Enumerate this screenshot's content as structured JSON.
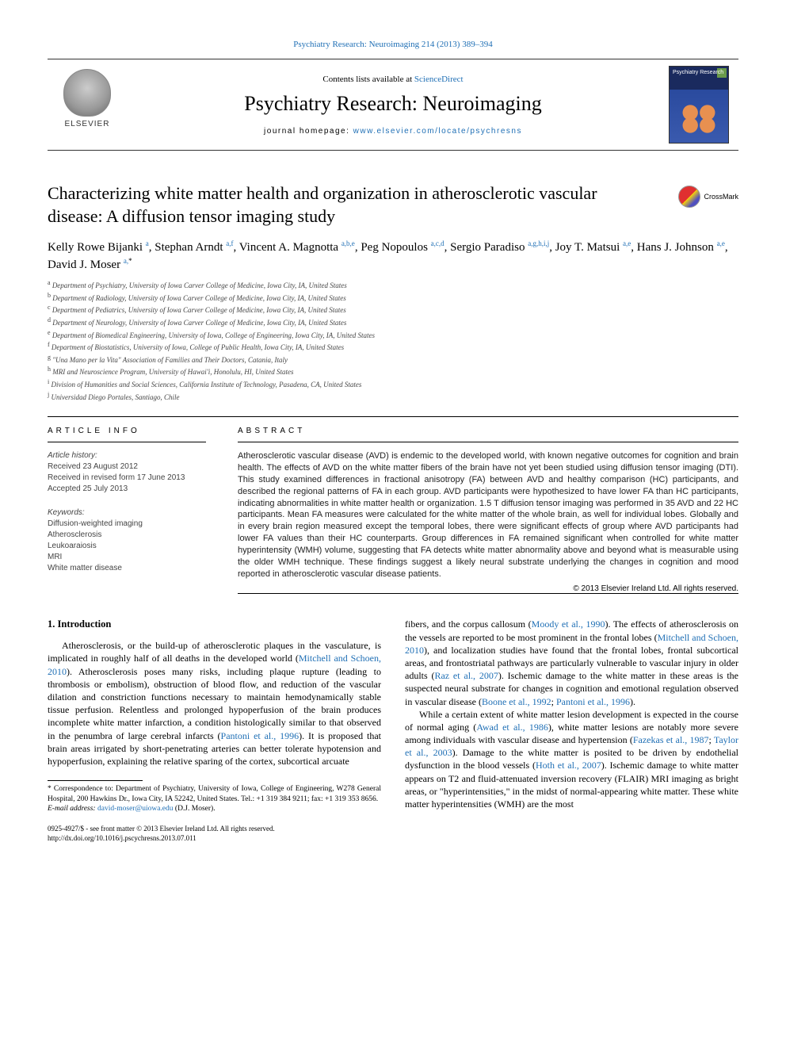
{
  "top_citation": "Psychiatry Research: Neuroimaging 214 (2013) 389–394",
  "header": {
    "contents_prefix": "Contents lists available at ",
    "contents_link": "ScienceDirect",
    "journal_name": "Psychiatry Research: Neuroimaging",
    "homepage_prefix": "journal homepage: ",
    "homepage_url": "www.elsevier.com/locate/psychresns",
    "elsevier": "ELSEVIER",
    "cover_title": "Psychiatry Research"
  },
  "crossmark": "CrossMark",
  "title": "Characterizing white matter health and organization in atherosclerotic vascular disease: A diffusion tensor imaging study",
  "authors_html": "Kelly Rowe Bijanki <sup>a</sup>, Stephan Arndt <sup>a,f</sup>, Vincent A. Magnotta <sup>a,b,e</sup>, Peg Nopoulos <sup>a,c,d</sup>, Sergio Paradiso <sup>a,g,h,i,j</sup>, Joy T. Matsui <sup>a,e</sup>, Hans J. Johnson <sup>a,e</sup>, David J. Moser <sup>a,</sup>",
  "affiliations": [
    "a Department of Psychiatry, University of Iowa Carver College of Medicine, Iowa City, IA, United States",
    "b Department of Radiology, University of Iowa Carver College of Medicine, Iowa City, IA, United States",
    "c Department of Pediatrics, University of Iowa Carver College of Medicine, Iowa City, IA, United States",
    "d Department of Neurology, University of Iowa Carver College of Medicine, Iowa City, IA, United States",
    "e Department of Biomedical Engineering, University of Iowa, College of Engineering, Iowa City, IA, United States",
    "f Department of Biostatistics, University of Iowa, College of Public Health, Iowa City, IA, United States",
    "g \"Una Mano per la Vita\" Association of Families and Their Doctors, Catania, Italy",
    "h MRI and Neuroscience Program, University of Hawai'i, Honolulu, HI, United States",
    "i Division of Humanities and Social Sciences, California Institute of Technology, Pasadena, CA, United States",
    "j Universidad Diego Portales, Santiago, Chile"
  ],
  "info": {
    "label": "article info",
    "history_label": "Article history:",
    "received": "Received 23 August 2012",
    "revised": "Received in revised form 17 June 2013",
    "accepted": "Accepted 25 July 2013",
    "keywords_label": "Keywords:",
    "keywords": [
      "Diffusion-weighted imaging",
      "Atherosclerosis",
      "Leukoaraiosis",
      "MRI",
      "White matter disease"
    ]
  },
  "abstract": {
    "label": "abstract",
    "text": "Atherosclerotic vascular disease (AVD) is endemic to the developed world, with known negative outcomes for cognition and brain health. The effects of AVD on the white matter fibers of the brain have not yet been studied using diffusion tensor imaging (DTI). This study examined differences in fractional anisotropy (FA) between AVD and healthy comparison (HC) participants, and described the regional patterns of FA in each group. AVD participants were hypothesized to have lower FA than HC participants, indicating abnormalities in white matter health or organization. 1.5 T diffusion tensor imaging was performed in 35 AVD and 22 HC participants. Mean FA measures were calculated for the white matter of the whole brain, as well for individual lobes. Globally and in every brain region measured except the temporal lobes, there were significant effects of group where AVD participants had lower FA values than their HC counterparts. Group differences in FA remained significant when controlled for white matter hyperintensity (WMH) volume, suggesting that FA detects white matter abnormality above and beyond what is measurable using the older WMH technique. These findings suggest a likely neural substrate underlying the changes in cognition and mood reported in atherosclerotic vascular disease patients.",
    "copyright": "© 2013 Elsevier Ireland Ltd. All rights reserved."
  },
  "section1": {
    "heading": "1.  Introduction",
    "p1a": "Atherosclerosis, or the build-up of atherosclerotic plaques in the vasculature, is implicated in roughly half of all deaths in the developed world (",
    "p1_ref1": "Mitchell and Schoen, 2010",
    "p1b": "). Atherosclerosis poses many risks, including plaque rupture (leading to thrombosis or embolism), obstruction of blood flow, and reduction of the vascular dilation and constriction functions necessary to maintain hemodynamically stable tissue perfusion. Relentless and prolonged hypoperfusion of the brain produces incomplete white matter infarction, a condition histologically similar to that observed in the penumbra of large cerebral infarcts (",
    "p1_ref2": "Pantoni et al., 1996",
    "p1c": "). It is proposed that brain areas irrigated by short-penetrating arteries can better tolerate hypotension and hypoperfusion, explaining the relative sparing of the cortex, subcortical arcuate",
    "p2a": "fibers, and the corpus callosum (",
    "p2_ref1": "Moody et al., 1990",
    "p2b": "). The effects of atherosclerosis on the vessels are reported to be most prominent in the frontal lobes (",
    "p2_ref2": "Mitchell and Schoen, 2010",
    "p2c": "), and localization studies have found that the frontal lobes, frontal subcortical areas, and frontostriatal pathways are particularly vulnerable to vascular injury in older adults (",
    "p2_ref3": "Raz et al., 2007",
    "p2d": "). Ischemic damage to the white matter in these areas is the suspected neural substrate for changes in cognition and emotional regulation observed in vascular disease (",
    "p2_ref4": "Boone et al., 1992",
    "p2e": "; ",
    "p2_ref5": "Pantoni et al., 1996",
    "p2f": ").",
    "p3a": "While a certain extent of white matter lesion development is expected in the course of normal aging (",
    "p3_ref1": "Awad et al., 1986",
    "p3b": "), white matter lesions are notably more severe among individuals with vascular disease and hypertension (",
    "p3_ref2": "Fazekas et al., 1987",
    "p3c": "; ",
    "p3_ref3": "Taylor et al., 2003",
    "p3d": "). Damage to the white matter is posited to be driven by endothelial dysfunction in the blood vessels (",
    "p3_ref4": "Hoth et al., 2007",
    "p3e": "). Ischemic damage to white matter appears on T2 and fluid-attenuated inversion recovery (FLAIR) MRI imaging as bright areas, or \"hyperintensities,\" in the midst of normal-appearing white matter. These white matter hyperintensities (WMH) are the most"
  },
  "footnote": {
    "corr": "* Correspondence to: Department of Psychiatry, University of Iowa, College of Engineering, W278 General Hospital, 200 Hawkins Dr., Iowa City, IA 52242, United States. Tel.: +1 319 384 9211; fax: +1 319 353 8656.",
    "email_label": "E-mail address: ",
    "email": "david-moser@uiowa.edu",
    "email_suffix": " (D.J. Moser)."
  },
  "footer": {
    "line1": "0925-4927/$ - see front matter © 2013 Elsevier Ireland Ltd. All rights reserved.",
    "line2": "http://dx.doi.org/10.1016/j.pscychresns.2013.07.011"
  },
  "colors": {
    "link": "#1f6fb5",
    "text": "#000000",
    "muted": "#444444",
    "background": "#ffffff"
  }
}
